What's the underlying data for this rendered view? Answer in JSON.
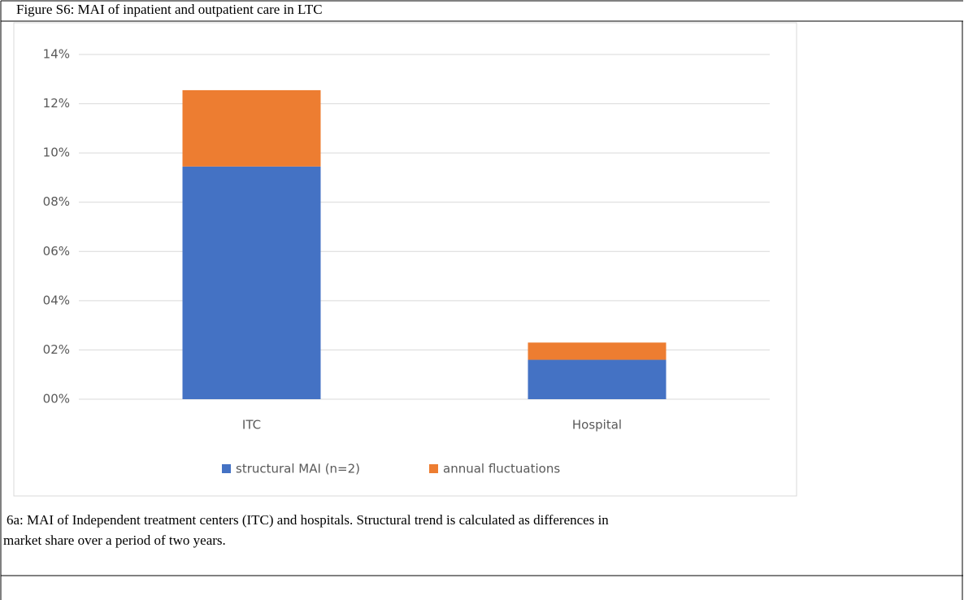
{
  "figure_title": "Figure S6: MAI of inpatient and outpatient care in LTC",
  "caption": [
    "6a: MAI of Independent treatment centers (ITC) and hospitals. Structural trend is calculated as differences in",
    "market share over a period of two years."
  ],
  "chart_data": {
    "type": "stacked_bar",
    "categories": [
      "ITC",
      "Hospital"
    ],
    "series": [
      {
        "name": "structural MAI (n=2)",
        "color": "#4472c4",
        "values": [
          9.45,
          1.6
        ]
      },
      {
        "name": "annual fluctuations",
        "color": "#ed7d31",
        "values": [
          3.1,
          0.7
        ]
      }
    ],
    "ylim": [
      0,
      14
    ],
    "yticks": [
      {
        "value": 0,
        "label": "00%"
      },
      {
        "value": 2,
        "label": "02%"
      },
      {
        "value": 4,
        "label": "04%"
      },
      {
        "value": 6,
        "label": "06%"
      },
      {
        "value": 8,
        "label": "08%"
      },
      {
        "value": 10,
        "label": "10%"
      },
      {
        "value": 12,
        "label": "12%"
      },
      {
        "value": 14,
        "label": "14%"
      }
    ],
    "grid": true,
    "legend": "bottom"
  }
}
